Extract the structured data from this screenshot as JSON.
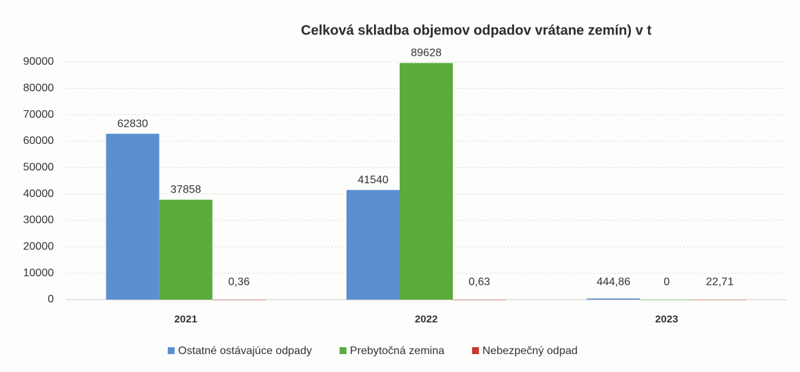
{
  "chart_data": {
    "type": "bar",
    "title": "Celková skladba objemov odpadov vrátane zemín) v t",
    "categories": [
      "2021",
      "2022",
      "2023"
    ],
    "series": [
      {
        "name": "Ostatné ostávajúce odpady",
        "color": "#5b8fd0",
        "values": [
          62830,
          41540,
          444.86
        ],
        "value_labels": [
          "62830",
          "41540",
          "444,86"
        ]
      },
      {
        "name": "Prebytočná zemina",
        "color": "#5aac3c",
        "values": [
          37858,
          89628,
          0
        ],
        "value_labels": [
          "37858",
          "89628",
          "0"
        ]
      },
      {
        "name": "Nebezpečný odpad",
        "color": "#c0392b",
        "values": [
          0.36,
          0.63,
          22.71
        ],
        "value_labels": [
          "0,36",
          "0,63",
          "22,71"
        ]
      }
    ],
    "ylim": [
      0,
      90000
    ],
    "yticks": [
      0,
      10000,
      20000,
      30000,
      40000,
      50000,
      60000,
      70000,
      80000,
      90000
    ],
    "grid": true,
    "legend": "bottom"
  }
}
